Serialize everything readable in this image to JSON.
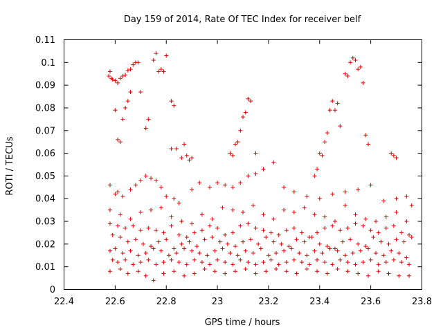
{
  "chart_data": {
    "type": "scatter",
    "title": "Day 159 of 2014, Rate Of TEC Index for receiver belf",
    "xlabel": "GPS time / hours",
    "ylabel": "ROTI / TECUs",
    "xlim": [
      22.4,
      23.8
    ],
    "ylim": [
      0,
      0.11
    ],
    "xticks": [
      22.4,
      22.6,
      22.8,
      23.0,
      23.2,
      23.4,
      23.6,
      23.8
    ],
    "xtick_labels": [
      "22.4",
      "22.6",
      "22.8",
      "23",
      "23.2",
      "23.4",
      "23.6",
      "23.8"
    ],
    "yticks": [
      0,
      0.01,
      0.02,
      0.03,
      0.04,
      0.05,
      0.06,
      0.07,
      0.08,
      0.09,
      0.1,
      0.11
    ],
    "ytick_labels": [
      "0",
      "0.01",
      "0.02",
      "0.03",
      "0.04",
      "0.05",
      "0.06",
      "0.07",
      "0.08",
      "0.09",
      "0.1",
      "0.11"
    ],
    "marker": "+",
    "color": "#dd0000",
    "grid": false,
    "series": [
      {
        "name": "ROTI",
        "x": [
          22.575,
          22.58,
          22.585,
          22.59,
          22.6,
          22.61,
          22.62,
          22.63,
          22.64,
          22.65,
          22.66,
          22.67,
          22.68,
          22.69,
          22.7,
          22.72,
          22.73,
          22.75,
          22.76,
          22.77,
          22.78,
          22.79,
          22.8,
          22.82,
          22.83,
          22.6,
          22.61,
          22.62,
          22.63,
          22.64,
          22.65,
          22.66,
          22.82,
          22.84,
          22.86,
          22.87,
          22.88,
          22.89,
          22.9,
          23.05,
          23.06,
          23.07,
          23.08,
          23.09,
          23.1,
          23.11,
          23.12,
          23.13,
          23.15,
          23.38,
          23.39,
          23.4,
          23.41,
          23.42,
          23.43,
          23.44,
          23.45,
          23.46,
          23.47,
          23.48,
          23.5,
          23.51,
          23.52,
          23.53,
          23.54,
          23.55,
          23.56,
          23.57,
          23.58,
          23.59,
          23.68,
          23.69,
          23.7,
          22.58,
          22.6,
          22.61,
          22.63,
          22.66,
          22.68,
          22.7,
          22.72,
          22.74,
          22.76,
          22.78,
          22.8,
          22.83,
          22.85,
          22.9,
          22.93,
          22.97,
          23.0,
          23.03,
          23.06,
          23.09,
          23.12,
          23.15,
          23.18,
          23.22,
          23.26,
          23.3,
          23.35,
          23.4,
          23.45,
          23.5,
          23.55,
          23.6,
          23.65,
          23.7,
          23.74,
          23.76,
          22.58,
          22.62,
          22.66,
          22.7,
          22.74,
          22.78,
          22.82,
          22.86,
          22.9,
          22.94,
          22.98,
          23.02,
          23.06,
          23.1,
          23.14,
          23.18,
          23.22,
          23.26,
          23.3,
          23.34,
          23.38,
          23.42,
          23.46,
          23.5,
          23.54,
          23.58,
          23.62,
          23.66,
          23.7,
          23.74,
          22.58,
          22.61,
          22.64,
          22.67,
          22.7,
          22.73,
          22.76,
          22.79,
          22.82,
          22.85,
          22.88,
          22.91,
          22.94,
          22.97,
          23.0,
          23.03,
          23.06,
          23.09,
          23.12,
          23.15,
          23.18,
          23.21,
          23.24,
          23.27,
          23.3,
          23.33,
          23.36,
          23.39,
          23.42,
          23.45,
          23.48,
          23.51,
          23.54,
          23.57,
          23.6,
          23.63,
          23.66,
          23.69,
          23.72,
          23.75,
          22.59,
          22.62,
          22.65,
          22.68,
          22.71,
          22.74,
          22.77,
          22.8,
          22.83,
          22.86,
          22.89,
          22.92,
          22.95,
          22.98,
          23.01,
          23.04,
          23.07,
          23.1,
          23.13,
          23.16,
          23.19,
          23.22,
          23.25,
          23.28,
          23.31,
          23.34,
          23.37,
          23.4,
          23.43,
          23.46,
          23.49,
          23.52,
          23.55,
          23.58,
          23.61,
          23.64,
          23.67,
          23.7,
          23.73,
          23.76,
          22.58,
          22.6,
          22.63,
          22.66,
          22.69,
          22.72,
          22.75,
          22.78,
          22.81,
          22.84,
          22.87,
          22.9,
          22.93,
          22.96,
          22.99,
          23.02,
          23.05,
          23.08,
          23.11,
          23.14,
          23.17,
          23.2,
          23.23,
          23.26,
          23.29,
          23.32,
          23.35,
          23.38,
          23.41,
          23.44,
          23.47,
          23.5,
          23.53,
          23.56,
          23.59,
          23.62,
          23.65,
          23.68,
          23.71,
          23.74,
          22.59,
          22.61,
          22.64,
          22.67,
          22.7,
          22.73,
          22.76,
          22.79,
          22.82,
          22.85,
          22.88,
          22.91,
          22.94,
          22.97,
          23.0,
          23.03,
          23.06,
          23.09,
          23.12,
          23.15,
          23.18,
          23.21,
          23.24,
          23.27,
          23.3,
          23.33,
          23.36,
          23.39,
          23.42,
          23.45,
          23.48,
          23.51,
          23.54,
          23.57,
          23.6,
          23.63,
          23.66,
          23.69,
          23.72,
          23.75,
          22.58,
          22.62,
          22.65,
          22.69,
          22.72,
          22.75,
          22.79,
          22.83,
          22.87,
          22.91,
          22.95,
          22.99,
          23.03,
          23.07,
          23.11,
          23.15,
          23.19,
          23.23,
          23.27,
          23.31,
          23.35,
          23.39,
          23.43,
          23.47,
          23.51,
          23.55,
          23.59,
          23.63,
          23.67,
          23.71,
          23.75
        ],
        "y": [
          0.094,
          0.096,
          0.093,
          0.0925,
          0.092,
          0.091,
          0.093,
          0.094,
          0.0945,
          0.0965,
          0.097,
          0.099,
          0.1,
          0.1,
          0.087,
          0.071,
          0.075,
          0.101,
          0.104,
          0.096,
          0.097,
          0.096,
          0.103,
          0.083,
          0.081,
          0.079,
          0.066,
          0.065,
          0.075,
          0.08,
          0.083,
          0.087,
          0.062,
          0.062,
          0.058,
          0.064,
          0.059,
          0.057,
          0.058,
          0.06,
          0.059,
          0.064,
          0.065,
          0.07,
          0.076,
          0.078,
          0.084,
          0.083,
          0.06,
          0.05,
          0.053,
          0.06,
          0.059,
          0.065,
          0.069,
          0.079,
          0.083,
          0.079,
          0.082,
          0.072,
          0.095,
          0.094,
          0.1,
          0.102,
          0.101,
          0.097,
          0.098,
          0.091,
          0.068,
          0.064,
          0.06,
          0.059,
          0.058,
          0.046,
          0.042,
          0.043,
          0.041,
          0.044,
          0.046,
          0.048,
          0.05,
          0.049,
          0.048,
          0.045,
          0.041,
          0.04,
          0.038,
          0.044,
          0.047,
          0.045,
          0.047,
          0.046,
          0.045,
          0.047,
          0.05,
          0.051,
          0.053,
          0.056,
          0.045,
          0.043,
          0.041,
          0.04,
          0.042,
          0.043,
          0.044,
          0.046,
          0.039,
          0.04,
          0.041,
          0.037,
          0.035,
          0.033,
          0.031,
          0.034,
          0.035,
          0.036,
          0.032,
          0.03,
          0.029,
          0.033,
          0.031,
          0.036,
          0.035,
          0.034,
          0.037,
          0.033,
          0.031,
          0.035,
          0.034,
          0.036,
          0.033,
          0.032,
          0.03,
          0.037,
          0.033,
          0.031,
          0.03,
          0.032,
          0.034,
          0.03,
          0.029,
          0.028,
          0.027,
          0.028,
          0.026,
          0.027,
          0.026,
          0.025,
          0.028,
          0.024,
          0.023,
          0.025,
          0.026,
          0.028,
          0.027,
          0.024,
          0.025,
          0.028,
          0.029,
          0.027,
          0.026,
          0.025,
          0.024,
          0.026,
          0.027,
          0.025,
          0.023,
          0.025,
          0.027,
          0.028,
          0.026,
          0.027,
          0.029,
          0.028,
          0.026,
          0.025,
          0.027,
          0.028,
          0.025,
          0.024,
          0.024,
          0.023,
          0.021,
          0.022,
          0.02,
          0.019,
          0.021,
          0.022,
          0.018,
          0.02,
          0.021,
          0.019,
          0.022,
          0.023,
          0.021,
          0.02,
          0.019,
          0.021,
          0.022,
          0.02,
          0.023,
          0.021,
          0.02,
          0.019,
          0.022,
          0.021,
          0.023,
          0.02,
          0.019,
          0.018,
          0.021,
          0.022,
          0.02,
          0.019,
          0.023,
          0.021,
          0.02,
          0.022,
          0.021,
          0.023,
          0.017,
          0.018,
          0.016,
          0.017,
          0.015,
          0.016,
          0.018,
          0.017,
          0.015,
          0.016,
          0.018,
          0.017,
          0.016,
          0.015,
          0.017,
          0.018,
          0.016,
          0.015,
          0.017,
          0.016,
          0.018,
          0.015,
          0.016,
          0.017,
          0.018,
          0.016,
          0.015,
          0.017,
          0.016,
          0.018,
          0.017,
          0.015,
          0.016,
          0.017,
          0.018,
          0.016,
          0.015,
          0.017,
          0.016,
          0.014,
          0.013,
          0.012,
          0.013,
          0.011,
          0.012,
          0.013,
          0.011,
          0.012,
          0.013,
          0.012,
          0.011,
          0.013,
          0.012,
          0.011,
          0.013,
          0.012,
          0.011,
          0.013,
          0.012,
          0.011,
          0.012,
          0.013,
          0.011,
          0.012,
          0.013,
          0.012,
          0.011,
          0.013,
          0.012,
          0.011,
          0.013,
          0.012,
          0.011,
          0.012,
          0.013,
          0.011,
          0.012,
          0.013,
          0.012,
          0.011,
          0.008,
          0.009,
          0.007,
          0.008,
          0.006,
          0.004,
          0.007,
          0.008,
          0.006,
          0.007,
          0.009,
          0.008,
          0.007,
          0.008,
          0.009,
          0.007,
          0.008,
          0.009,
          0.008,
          0.007,
          0.009,
          0.008,
          0.007,
          0.009,
          0.008,
          0.007,
          0.006,
          0.008,
          0.007,
          0.006,
          0.006
        ]
      }
    ]
  }
}
